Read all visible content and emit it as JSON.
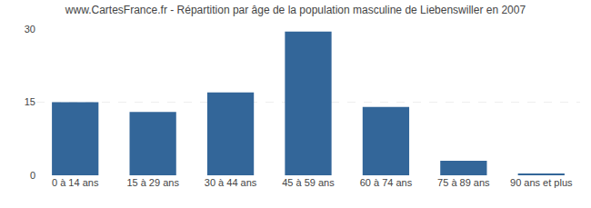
{
  "chart_data": {
    "type": "bar",
    "title": "www.CartesFrance.fr - Répartition par âge de la population masculine de Liebenswiller en 2007",
    "categories": [
      "0 à 14 ans",
      "15 à 29 ans",
      "30 à 44 ans",
      "45 à 59 ans",
      "60 à 74 ans",
      "75 à 89 ans",
      "90 ans et plus"
    ],
    "values": [
      15,
      13,
      17,
      29.5,
      14,
      3,
      0.3
    ],
    "color": "#336699",
    "ylim": [
      0,
      30
    ],
    "yticks": [
      0,
      15,
      30
    ],
    "grid": true
  }
}
